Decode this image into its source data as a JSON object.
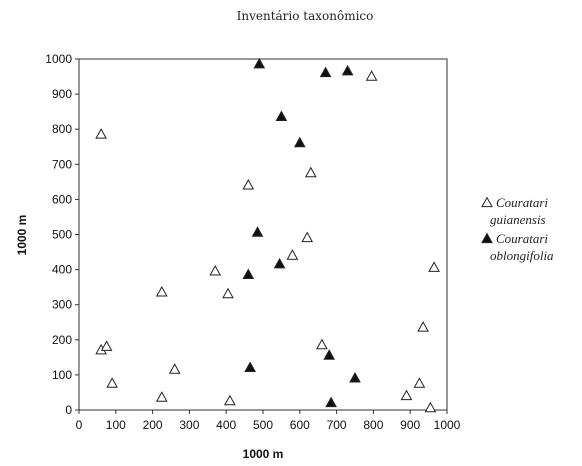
{
  "chart_data": {
    "type": "scatter",
    "title": "Inventário taxonômico",
    "xlabel": "1000 m",
    "ylabel": "1000 m",
    "xlim": [
      0,
      1000
    ],
    "ylim": [
      0,
      1000
    ],
    "xticks": [
      "0",
      "100",
      "200",
      "300",
      "400",
      "500",
      "600",
      "700",
      "800",
      "900",
      "1000"
    ],
    "yticks": [
      "0",
      "100",
      "200",
      "300",
      "400",
      "500",
      "600",
      "700",
      "800",
      "900",
      "1000"
    ],
    "grid": false,
    "legend_position": "right",
    "series": [
      {
        "name": "Couratari guianensis",
        "legend_lines": [
          "Couratari",
          "guianensis"
        ],
        "marker": "open-triangle",
        "points": [
          [
            60,
            785
          ],
          [
            60,
            170
          ],
          [
            75,
            180
          ],
          [
            90,
            75
          ],
          [
            225,
            35
          ],
          [
            225,
            335
          ],
          [
            260,
            115
          ],
          [
            370,
            395
          ],
          [
            405,
            330
          ],
          [
            410,
            25
          ],
          [
            460,
            640
          ],
          [
            580,
            440
          ],
          [
            620,
            490
          ],
          [
            630,
            675
          ],
          [
            660,
            185
          ],
          [
            795,
            950
          ],
          [
            890,
            40
          ],
          [
            925,
            75
          ],
          [
            935,
            235
          ],
          [
            955,
            5
          ],
          [
            965,
            405
          ]
        ]
      },
      {
        "name": "Couratari oblongifolia",
        "legend_lines": [
          "Couratari",
          "oblongifolia"
        ],
        "marker": "filled-triangle",
        "points": [
          [
            490,
            985
          ],
          [
            670,
            960
          ],
          [
            730,
            965
          ],
          [
            550,
            835
          ],
          [
            600,
            760
          ],
          [
            485,
            505
          ],
          [
            545,
            415
          ],
          [
            460,
            385
          ],
          [
            465,
            120
          ],
          [
            680,
            155
          ],
          [
            750,
            90
          ],
          [
            685,
            20
          ]
        ]
      }
    ]
  }
}
